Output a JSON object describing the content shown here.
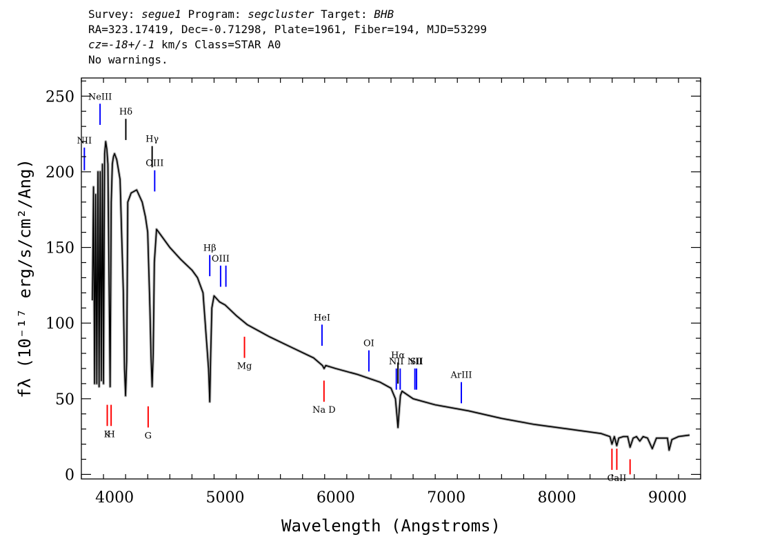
{
  "header": {
    "line1": {
      "k1": "Survey: ",
      "v1": "segue1",
      "k2": " Program: ",
      "v2": "segcluster",
      "k3": " Target: ",
      "v3": "BHB"
    },
    "line2": "RA=323.17419, Dec=-0.71298, Plate=1961, Fiber=194, MJD=53299",
    "line3": {
      "cz": "cz=",
      "zval": "-18+/-1",
      "rest": " km/s Class=STAR A0"
    },
    "line4": "No warnings."
  },
  "chart_data": {
    "type": "line",
    "title": "",
    "xlabel": "Wavelength (Angstroms)",
    "ylabel": "fλ (10⁻¹⁷ erg/s/cm²/Ang)",
    "xlim": [
      3700,
      9300
    ],
    "ylim": [
      -3,
      262
    ],
    "x_ticks": [
      4000,
      5000,
      6000,
      7000,
      8000,
      9000
    ],
    "y_ticks": [
      0,
      50,
      100,
      150,
      200,
      250
    ],
    "x_tick_labels": [
      "4000",
      "5000",
      "6000",
      "7000",
      "8000",
      "9000"
    ],
    "y_tick_labels": [
      "0",
      "50",
      "100",
      "150",
      "200",
      "250"
    ],
    "series": [
      {
        "color": "#000000",
        "x": [
          3800,
          3810,
          3820,
          3830,
          3840,
          3850,
          3860,
          3870,
          3880,
          3890,
          3900,
          3910,
          3920,
          3930,
          3940,
          3950,
          3960,
          3970,
          3980,
          3990,
          4000,
          4020,
          4050,
          4080,
          4090,
          4100,
          4110,
          4120,
          4150,
          4200,
          4250,
          4280,
          4300,
          4320,
          4330,
          4340,
          4350,
          4360,
          4380,
          4400,
          4500,
          4600,
          4700,
          4750,
          4800,
          4830,
          4850,
          4861,
          4870,
          4880,
          4900,
          4950,
          5000,
          5100,
          5200,
          5400,
          5600,
          5800,
          5880,
          5895,
          5910,
          6000,
          6200,
          6400,
          6500,
          6540,
          6555,
          6563,
          6570,
          6585,
          6600,
          6700,
          6900,
          7200,
          7500,
          7800,
          8100,
          8400,
          8480,
          8498,
          8520,
          8542,
          8560,
          8600,
          8640,
          8662,
          8690,
          8720,
          8750,
          8780,
          8820,
          8863,
          8900,
          8950,
          9000,
          9015,
          9040,
          9100,
          9200
        ],
        "y": [
          115,
          190,
          60,
          185,
          60,
          200,
          58,
          200,
          62,
          205,
          60,
          212,
          220,
          215,
          205,
          130,
          58,
          180,
          205,
          210,
          212,
          208,
          195,
          120,
          70,
          52,
          75,
          180,
          186,
          188,
          180,
          170,
          160,
          110,
          78,
          58,
          80,
          140,
          162,
          160,
          150,
          142,
          135,
          130,
          120,
          90,
          70,
          48,
          80,
          110,
          118,
          114,
          112,
          105,
          99,
          91,
          84,
          77,
          72,
          70,
          72,
          70,
          66,
          61,
          57,
          50,
          38,
          31,
          38,
          52,
          55,
          50,
          46,
          42,
          37,
          33,
          30,
          27,
          25,
          20,
          25,
          19,
          24,
          25,
          25,
          18,
          24,
          25,
          22,
          25,
          24,
          17,
          24,
          24,
          24,
          16,
          23,
          25,
          26
        ]
      }
    ],
    "emission_lines": [
      {
        "label": "NII",
        "x": 3727,
        "color": "#0000ff",
        "y0": 201,
        "y1": 216
      },
      {
        "label": "NeIII",
        "x": 3869,
        "color": "#0000ff",
        "y0": 231,
        "y1": 245
      },
      {
        "label": "Hδ",
        "x": 4102,
        "color": "#000000",
        "y0": 221,
        "y1": 235
      },
      {
        "label": "Hγ",
        "x": 4340,
        "color": "#000000",
        "y0": 203,
        "y1": 217
      },
      {
        "label": "OIII",
        "x": 4363,
        "color": "#0000ff",
        "y0": 187,
        "y1": 201
      },
      {
        "label": "Hβ",
        "x": 4861,
        "color": "#0000ff",
        "y0": 131,
        "y1": 145
      },
      {
        "label": "OIII",
        "x": 4959,
        "color": "#0000ff",
        "y0": 124,
        "y1": 138
      },
      {
        "label": "",
        "x": 5007,
        "color": "#0000ff",
        "y0": 124,
        "y1": 138
      },
      {
        "label": "HeI",
        "x": 5876,
        "color": "#0000ff",
        "y0": 85,
        "y1": 99
      },
      {
        "label": "OI",
        "x": 6300,
        "color": "#0000ff",
        "y0": 68,
        "y1": 82
      },
      {
        "label": "NII",
        "x": 6548,
        "color": "#0000ff",
        "y0": 56,
        "y1": 70
      },
      {
        "label": "Hα",
        "x": 6563,
        "color": "#000000",
        "y0": 60,
        "y1": 74
      },
      {
        "label": "",
        "x": 6583,
        "color": "#0000ff",
        "y0": 56,
        "y1": 70
      },
      {
        "label": "NII",
        "x": 6716,
        "color": "#0000ff",
        "y0": 56,
        "y1": 70
      },
      {
        "label": "SII",
        "x": 6731,
        "color": "#0000ff",
        "y0": 56,
        "y1": 70
      },
      {
        "label": "ArIII",
        "x": 7136,
        "color": "#0000ff",
        "y0": 47,
        "y1": 61
      }
    ],
    "absorption_lines": [
      {
        "label": "K",
        "x": 3934,
        "color": "#ff0000",
        "y0": 32,
        "y1": 46
      },
      {
        "label": "H",
        "x": 3969,
        "color": "#ff0000",
        "y0": 32,
        "y1": 46
      },
      {
        "label": "G",
        "x": 4304,
        "color": "#ff0000",
        "y0": 31,
        "y1": 45
      },
      {
        "label": "Mg",
        "x": 5175,
        "color": "#ff0000",
        "y0": 77,
        "y1": 91
      },
      {
        "label": "Na D",
        "x": 5894,
        "color": "#ff0000",
        "y0": 48,
        "y1": 62
      },
      {
        "label": "",
        "x": 8498,
        "color": "#ff0000",
        "y0": 3,
        "y1": 17
      },
      {
        "label": "CaII",
        "x": 8542,
        "color": "#ff0000",
        "y0": 3,
        "y1": 17
      },
      {
        "label": "",
        "x": 8662,
        "color": "#ff0000",
        "y0": 0,
        "y1": 10
      }
    ]
  }
}
